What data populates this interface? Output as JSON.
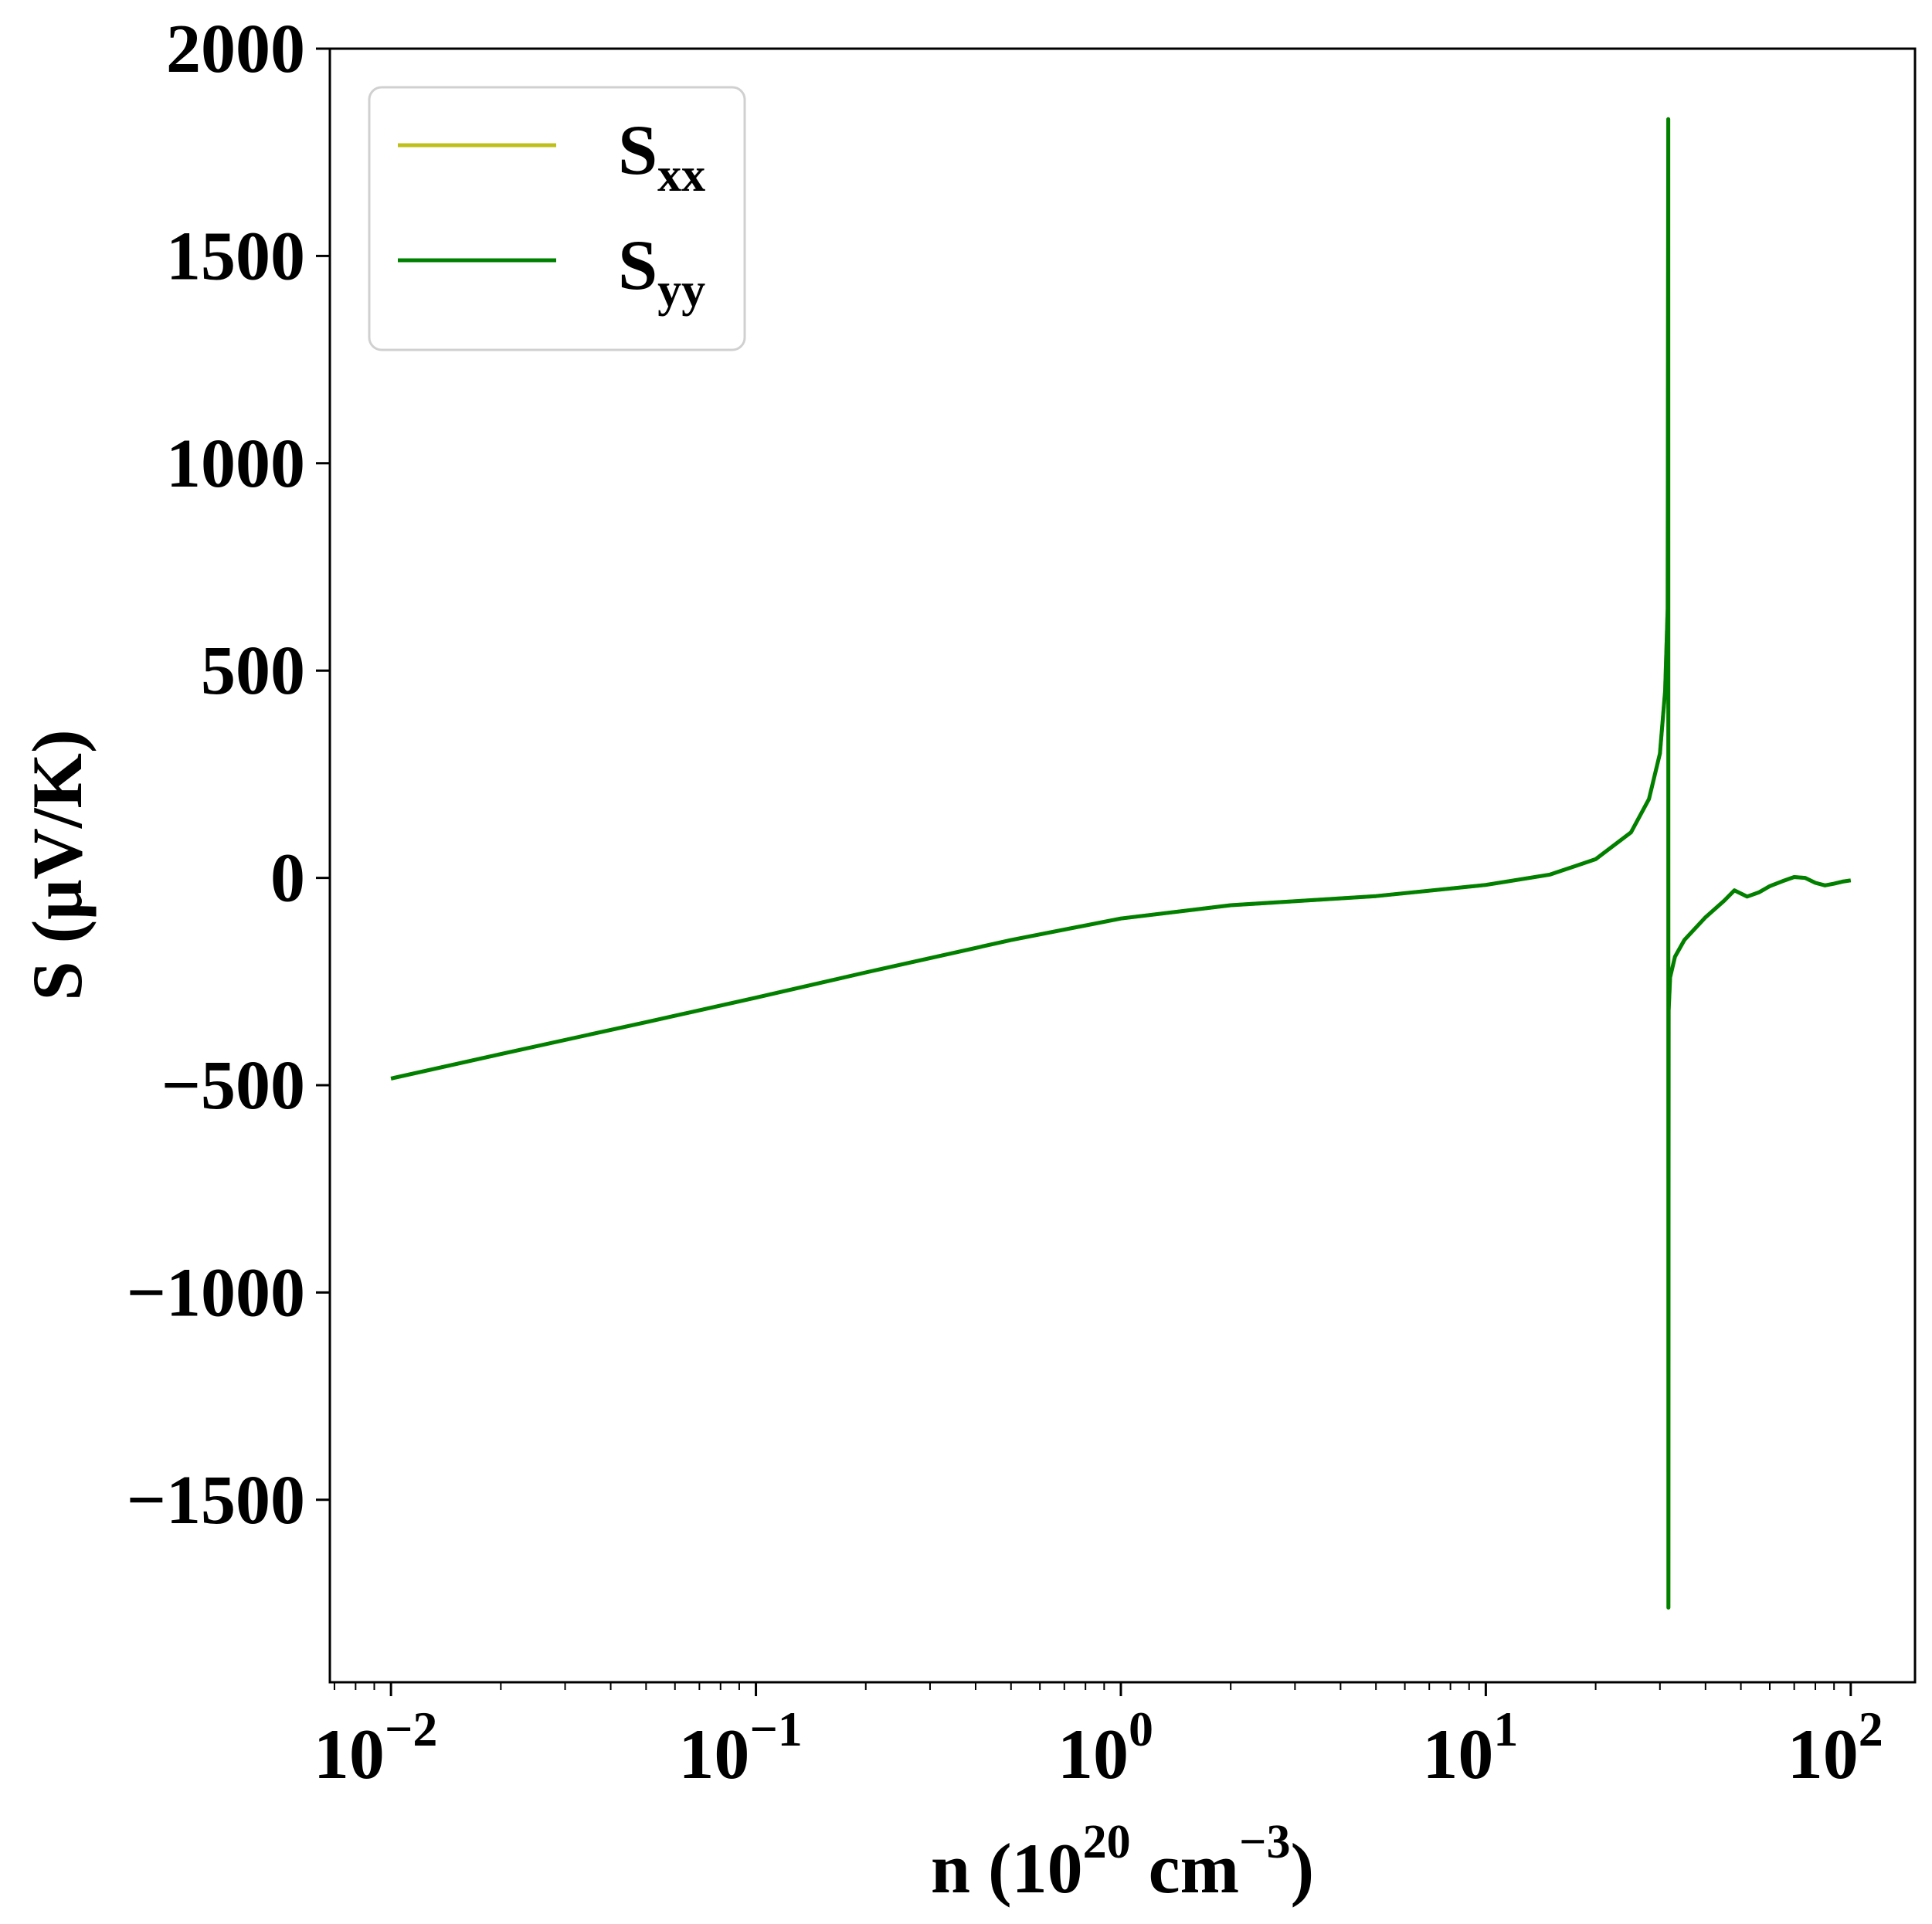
{
  "chart_data": {
    "type": "line",
    "title": "",
    "xlabel": {
      "base": "n (10",
      "exp1": "20",
      "mid": " cm",
      "exp2": "−3",
      "end": ")"
    },
    "ylabel": "S (μV/K)",
    "x_scale": "log",
    "xlim": [
      0.0068,
      150
    ],
    "ylim": [
      -1940,
      2000
    ],
    "grid": false,
    "legend_position": "top-left",
    "x_ticks": [
      {
        "base": "10",
        "exp": "−2",
        "value": 0.01
      },
      {
        "base": "10",
        "exp": "−1",
        "value": 0.1
      },
      {
        "base": "10",
        "exp": "0",
        "value": 1
      },
      {
        "base": "10",
        "exp": "1",
        "value": 10
      },
      {
        "base": "10",
        "exp": "2",
        "value": 100
      }
    ],
    "y_ticks": [
      {
        "label": "2000",
        "value": 2000
      },
      {
        "label": "1500",
        "value": 1500
      },
      {
        "label": "1000",
        "value": 1000
      },
      {
        "label": "500",
        "value": 500
      },
      {
        "label": "0",
        "value": 0
      },
      {
        "label": "−500",
        "value": -500
      },
      {
        "label": "−1000",
        "value": -1000
      },
      {
        "label": "−1500",
        "value": -1500
      }
    ],
    "series": [
      {
        "name": {
          "main": "S",
          "sub": "xx"
        },
        "color": "#bfbf1a",
        "x": [
          0.01,
          0.02,
          0.05,
          0.1,
          0.2,
          0.5,
          1,
          2,
          5,
          10,
          15,
          20,
          25,
          28,
          30,
          31,
          31.5,
          31.62,
          31.65,
          31.7,
          32,
          33,
          35,
          40,
          45,
          48,
          52,
          56,
          60,
          65,
          70,
          75,
          80,
          85,
          90,
          95,
          100
        ],
        "y": [
          -484,
          -425,
          -348,
          -289,
          -228,
          -150,
          -98,
          -66,
          -44,
          -17,
          8,
          45,
          110,
          190,
          300,
          450,
          650,
          1830,
          -1760,
          -320,
          -240,
          -190,
          -150,
          -95,
          -55,
          -30,
          -45,
          -35,
          -20,
          -8,
          2,
          0,
          -12,
          -18,
          -14,
          -9,
          -6
        ]
      },
      {
        "name": {
          "main": "S",
          "sub": "yy"
        },
        "color": "#008000",
        "x": [
          0.01,
          0.02,
          0.05,
          0.1,
          0.2,
          0.5,
          1,
          2,
          5,
          10,
          15,
          20,
          25,
          28,
          30,
          31,
          31.5,
          31.62,
          31.65,
          31.7,
          32,
          33,
          35,
          40,
          45,
          48,
          52,
          56,
          60,
          65,
          70,
          75,
          80,
          85,
          90,
          95,
          100
        ],
        "y": [
          -484,
          -425,
          -348,
          -289,
          -228,
          -150,
          -98,
          -66,
          -44,
          -17,
          8,
          45,
          110,
          190,
          300,
          450,
          650,
          1830,
          -1760,
          -320,
          -240,
          -190,
          -150,
          -95,
          -55,
          -30,
          -45,
          -35,
          -20,
          -8,
          2,
          0,
          -12,
          -18,
          -14,
          -9,
          -6
        ]
      }
    ]
  }
}
